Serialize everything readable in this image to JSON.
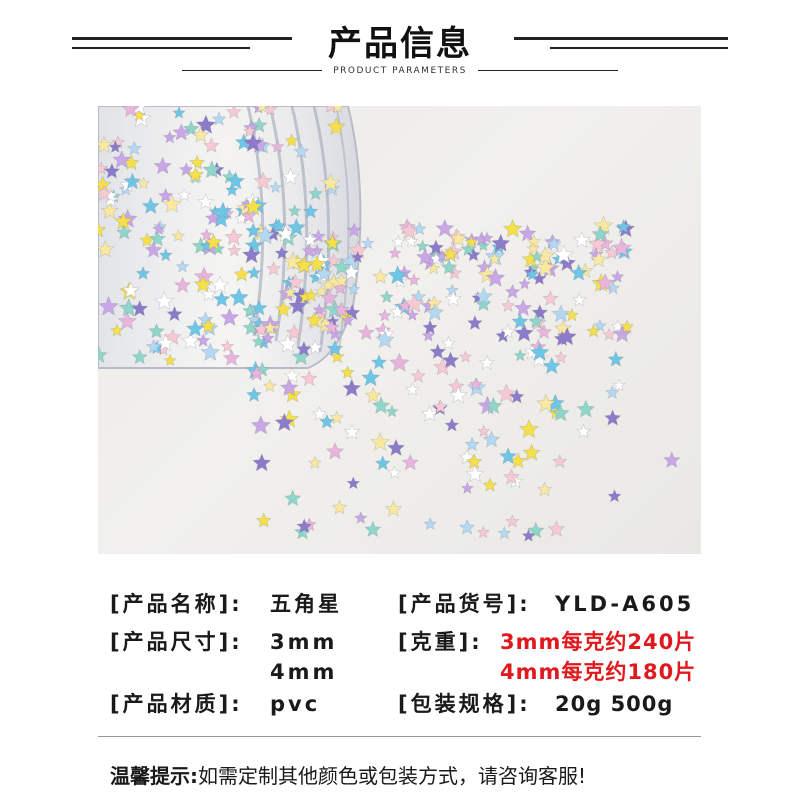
{
  "header": {
    "title": "产品信息",
    "subtitle": "PRODUCT PARAMETERS"
  },
  "photo": {
    "description_icon": "star-sequins-photo",
    "star_colors": [
      "#f5e04a",
      "#c9a6e6",
      "#8fd6c8",
      "#f7c9d2",
      "#b4d8f2",
      "#8c7bc9",
      "#f9e9a0",
      "#6ec6e6",
      "#e8b4dc",
      "#ffffff"
    ]
  },
  "specs": {
    "name_label": "[产品名称]:",
    "name_value": "五角星",
    "code_label": "[产品货号]:",
    "code_value": "YLD-A605",
    "size_label": "[产品尺寸]:",
    "size_value_1": "3mm",
    "size_value_2": "4mm",
    "weight_label": "[克重]:",
    "weight_value_1": "3mm每克约240片",
    "weight_value_2": "4mm每克约180片",
    "material_label": "[产品材质]:",
    "material_value": "pvc",
    "package_label": "[包装规格]:",
    "package_value": "20g 500g"
  },
  "note": {
    "label": "温馨提示:",
    "text": "如需定制其他颜色或包装方式，请咨询客服!"
  }
}
